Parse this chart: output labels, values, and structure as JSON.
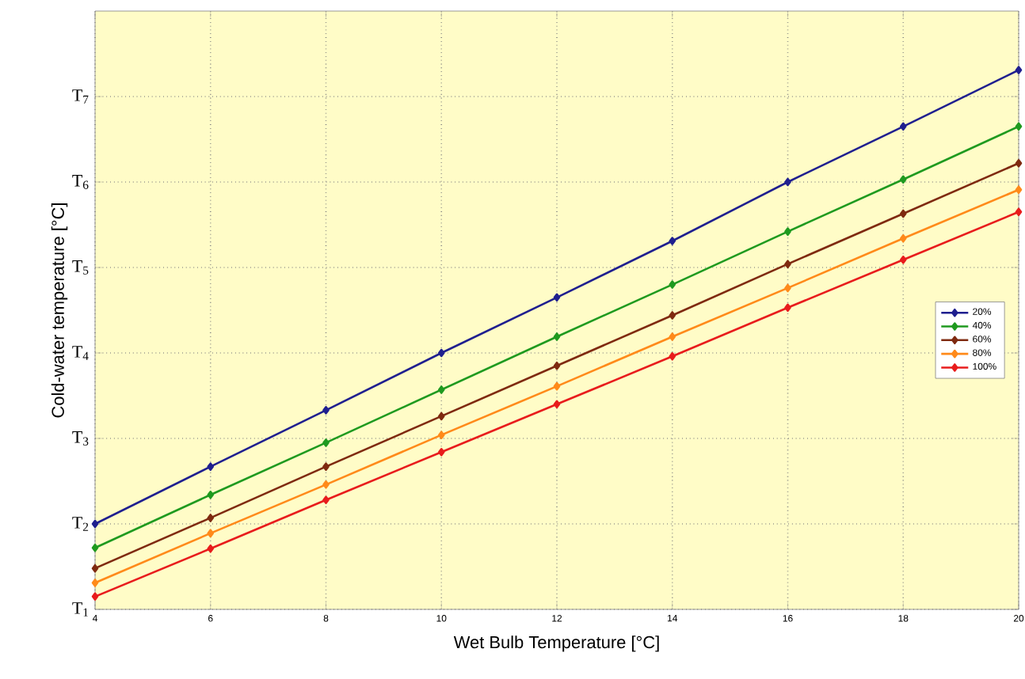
{
  "chart_data": {
    "type": "line",
    "xlabel": "Wet Bulb Temperature [°C]",
    "ylabel": "Cold-water temperature [°C]",
    "x": [
      4,
      6,
      8,
      10,
      12,
      14,
      16,
      18,
      20
    ],
    "xlim": [
      4,
      20
    ],
    "xticks": [
      4,
      6,
      8,
      10,
      12,
      14,
      16,
      18,
      20
    ],
    "ylim": [
      1,
      8
    ],
    "yticks": [
      {
        "value": 1,
        "label": "T$_{1}$"
      },
      {
        "value": 2,
        "label": "T$_{2}$"
      },
      {
        "value": 3,
        "label": "T$_{3}$"
      },
      {
        "value": 4,
        "label": "T$_{4}$"
      },
      {
        "value": 5,
        "label": "T$_{5}$"
      },
      {
        "value": 6,
        "label": "T$_{6}$"
      },
      {
        "value": 7,
        "label": "T$_{7}$"
      }
    ],
    "grid": true,
    "legend": "right",
    "marker": "diamond",
    "line_style": "solid",
    "series": [
      {
        "name": "20%",
        "color": "#1f1f8f",
        "values": [
          2.0,
          2.67,
          3.33,
          4.0,
          4.65,
          5.31,
          6.0,
          6.65,
          7.31
        ]
      },
      {
        "name": "40%",
        "color": "#1f9a1f",
        "values": [
          1.72,
          2.34,
          2.95,
          3.57,
          4.19,
          4.8,
          5.42,
          6.03,
          6.65
        ]
      },
      {
        "name": "60%",
        "color": "#7f2a10",
        "values": [
          1.48,
          2.07,
          2.67,
          3.26,
          3.85,
          4.44,
          5.04,
          5.63,
          6.22
        ]
      },
      {
        "name": "80%",
        "color": "#ff8a1a",
        "values": [
          1.31,
          1.89,
          2.46,
          3.04,
          3.61,
          4.19,
          4.76,
          5.34,
          5.91
        ]
      },
      {
        "name": "100%",
        "color": "#e81c1c",
        "values": [
          1.15,
          1.71,
          2.28,
          2.84,
          3.4,
          3.96,
          4.53,
          5.09,
          5.65
        ]
      }
    ]
  }
}
